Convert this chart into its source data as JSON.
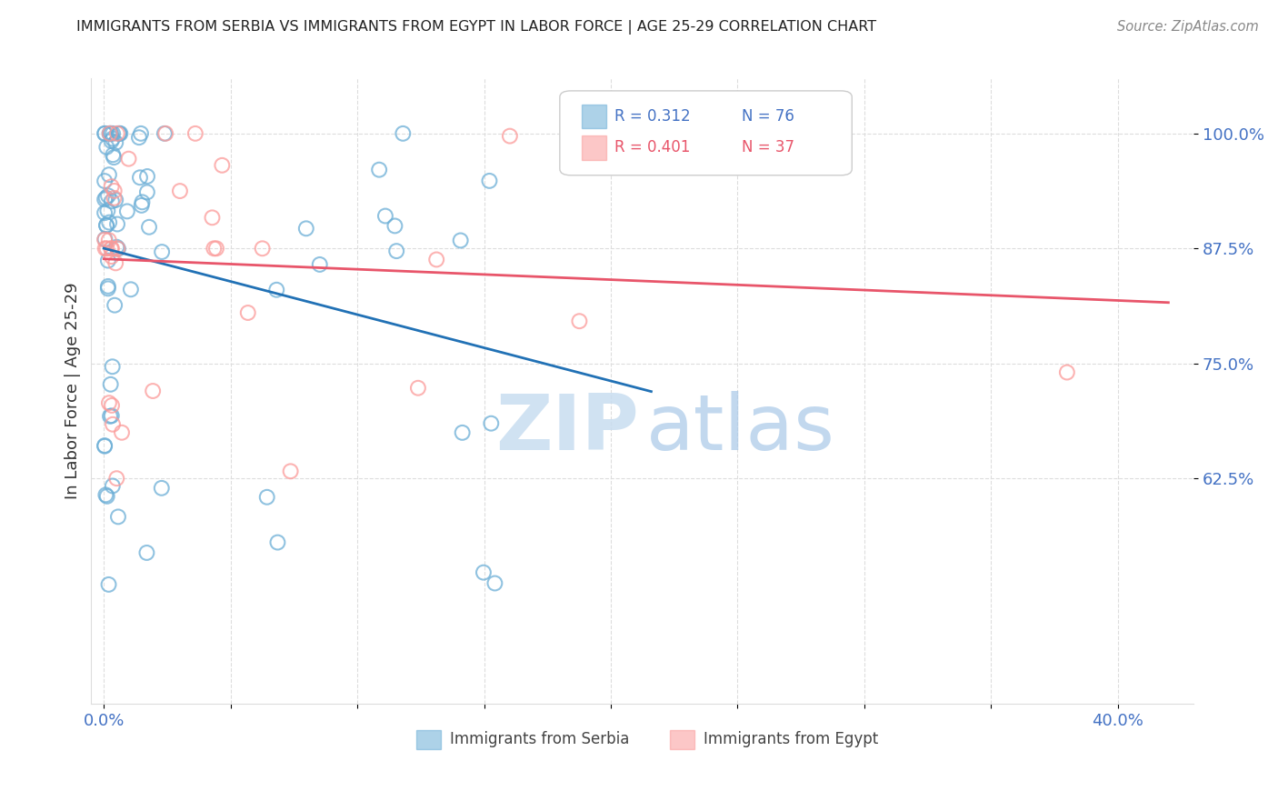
{
  "title": "IMMIGRANTS FROM SERBIA VS IMMIGRANTS FROM EGYPT IN LABOR FORCE | AGE 25-29 CORRELATION CHART",
  "source": "Source: ZipAtlas.com",
  "ylabel": "In Labor Force | Age 25-29",
  "serbia_R": 0.312,
  "serbia_N": 76,
  "egypt_R": 0.401,
  "egypt_N": 37,
  "xlim": [
    -0.005,
    0.43
  ],
  "ylim": [
    0.38,
    1.06
  ],
  "serbia_color": "#6baed6",
  "egypt_color": "#fb9a99",
  "serbia_line_color": "#2171b5",
  "egypt_line_color": "#e8556a",
  "legend_serbia": "Immigrants from Serbia",
  "legend_egypt": "Immigrants from Egypt",
  "grid_color": "#dddddd",
  "tick_color": "#4472c4",
  "title_color": "#222222",
  "source_color": "#888888",
  "ylabel_color": "#333333",
  "watermark_zip_color": "#c8ddf0",
  "watermark_atlas_color": "#a8c8e8",
  "x_tick_positions": [
    0.0,
    0.05,
    0.1,
    0.15,
    0.2,
    0.25,
    0.3,
    0.35,
    0.4
  ],
  "x_tick_labels": [
    "0.0%",
    "",
    "",
    "",
    "",
    "",
    "",
    "",
    "40.0%"
  ],
  "y_tick_positions": [
    0.625,
    0.75,
    0.875,
    1.0
  ],
  "y_tick_labels": [
    "62.5%",
    "75.0%",
    "87.5%",
    "100.0%"
  ]
}
